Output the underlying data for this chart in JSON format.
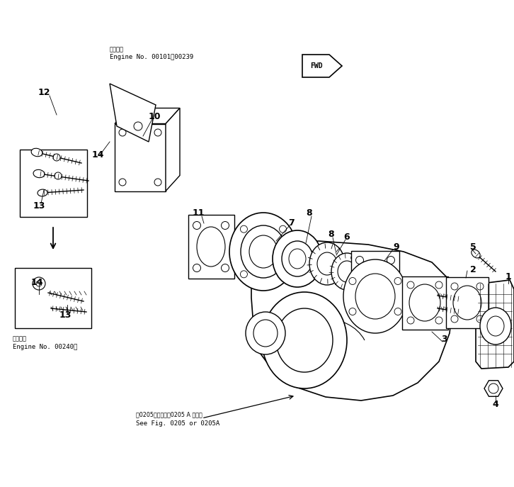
{
  "bg_color": "#ffffff",
  "line_color": "#000000",
  "fig_width": 7.26,
  "fig_height": 6.87,
  "annotations": {
    "engine_range_1_jp": "適用号機",
    "engine_range_1_en": "Engine No. 00101～00239",
    "engine_range_2_jp": "適用号機",
    "engine_range_2_en": "Engine No. 00240～",
    "see_fig_jp": "第0205図または第0205 A 参照要",
    "see_fig_en": "See Fig. 0205 or 0205A",
    "fwd_label": "FWD"
  }
}
